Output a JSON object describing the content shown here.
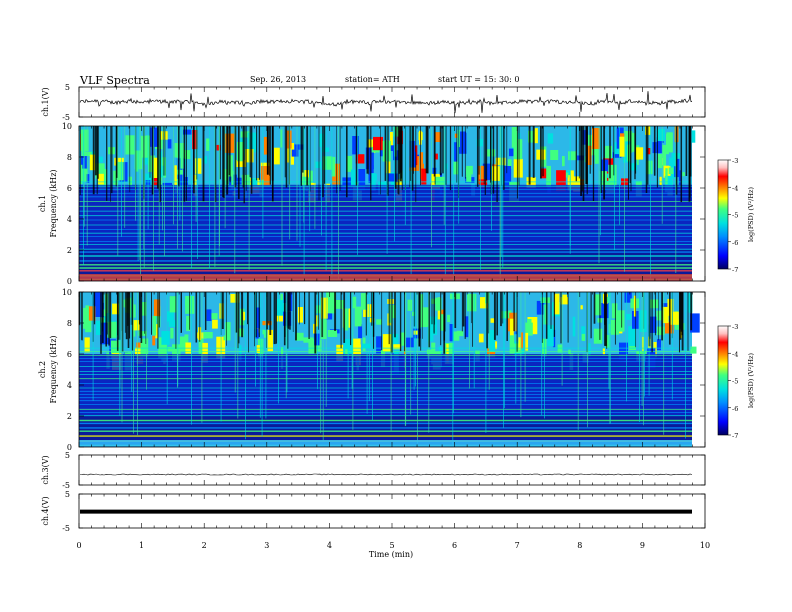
{
  "header": {
    "title": "VLF  Spectra",
    "date": "Sep. 26, 2013",
    "station": "station= ATH",
    "start": "start  UT  =   15: 30: 0"
  },
  "chart_data": [
    {
      "type": "line",
      "ylabel": "ch.1(V)",
      "ylim": [
        -5,
        5
      ],
      "yticks": [
        "5",
        "-5"
      ],
      "trace": "noisy waveform centered near 0 V with frequent spikes",
      "color": "#000000"
    },
    {
      "type": "heatmap",
      "ylabel_channel": "ch.1",
      "ylabel": "Frequency  (kHz)",
      "ylim": [
        0,
        10
      ],
      "yticks": [
        "0",
        "2",
        "4",
        "6",
        "8",
        "10"
      ],
      "colorbar": {
        "label": "log(PSD) (V²/Hz)",
        "range": [
          -7,
          -3
        ],
        "ticks": [
          "-3",
          "-4",
          "-5",
          "-6",
          "-7"
        ],
        "colors": [
          "#000060",
          "#0000ff",
          "#0090ff",
          "#00e0e0",
          "#40ff80",
          "#ffff00",
          "#ff8000",
          "#ff0000",
          "#ffc0c0",
          "#ffffff"
        ]
      }
    },
    {
      "type": "heatmap",
      "ylabel_channel": "ch.2",
      "ylabel": "Frequency  (kHz)",
      "ylim": [
        0,
        10
      ],
      "yticks": [
        "0",
        "2",
        "4",
        "6",
        "8",
        "10"
      ],
      "colorbar": {
        "label": "log(PSD) (V²/Hz)",
        "range": [
          -7,
          -3
        ],
        "ticks": [
          "-3",
          "-4",
          "-5",
          "-6",
          "-7"
        ]
      }
    },
    {
      "type": "line",
      "ylabel": "ch.3(V)",
      "ylim": [
        -5,
        5
      ],
      "yticks": [
        "5",
        "-5"
      ],
      "trace": "nearly flat trace slightly below 0 V",
      "color": "#000000"
    },
    {
      "type": "line",
      "ylabel": "ch.4(V)",
      "ylim": [
        -5,
        5
      ],
      "yticks": [
        "5",
        "-5"
      ],
      "trace": "thick flat trace near 0 V",
      "color": "#000000"
    }
  ],
  "x_axis": {
    "xlabel": "Time  (min)",
    "xlim": [
      0,
      10
    ],
    "data_end_min": 9.8,
    "ticks": [
      "0",
      "1",
      "2",
      "3",
      "4",
      "5",
      "6",
      "7",
      "8",
      "9",
      "10"
    ]
  }
}
